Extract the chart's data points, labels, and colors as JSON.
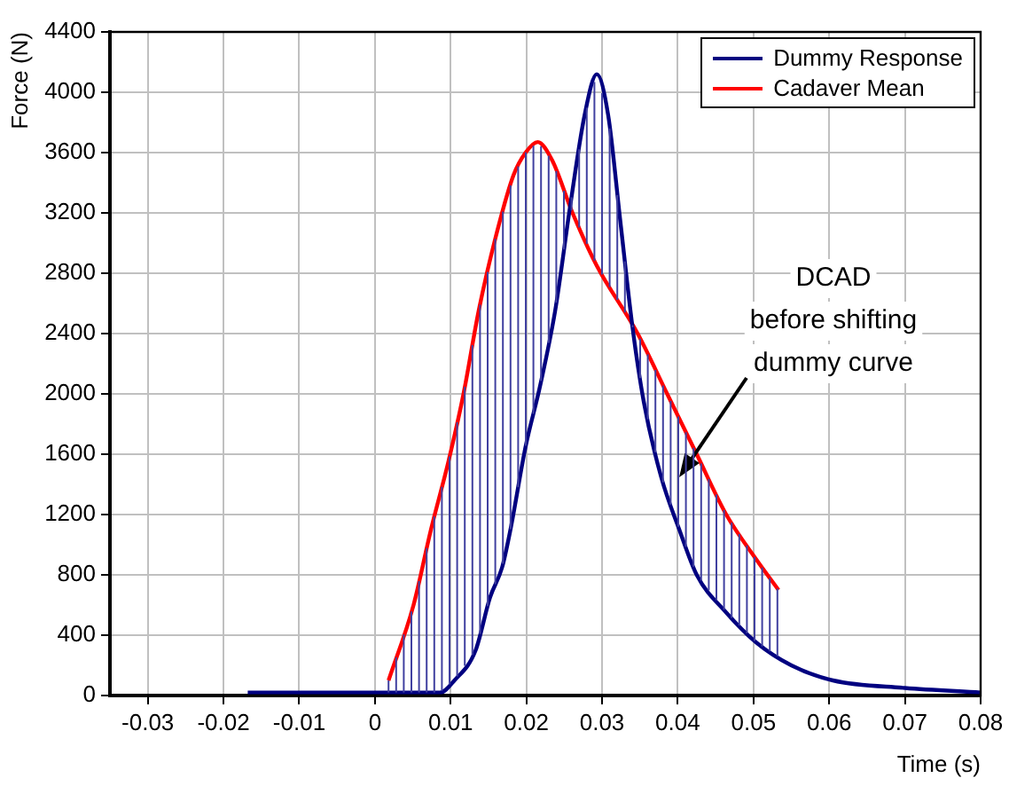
{
  "chart_data": {
    "type": "line",
    "xlabel": "Time (s)",
    "ylabel": "Force (N)",
    "xlim": [
      -0.035,
      0.08
    ],
    "xticks": [
      -0.03,
      -0.02,
      -0.01,
      0,
      0.01,
      0.02,
      0.03,
      0.04,
      0.05,
      0.06,
      0.07,
      0.08
    ],
    "ylim": [
      0,
      4400
    ],
    "yticks": [
      0,
      400,
      800,
      1200,
      1600,
      2000,
      2400,
      2800,
      3200,
      3600,
      4000,
      4400
    ],
    "grid": true,
    "legend": "top right",
    "marker": "none",
    "line_style": "solid",
    "annotations": [
      "DCAD\nbefore shifting\ndummy curve"
    ],
    "series": [
      {
        "name": "Dummy Response",
        "color": "#000080",
        "x": [
          -0.0168,
          0,
          0.0086,
          0.0105,
          0.0133,
          0.0152,
          0.0168,
          0.0179,
          0.0199,
          0.0218,
          0.0238,
          0.0258,
          0.0277,
          0.0293,
          0.0308,
          0.0324,
          0.034,
          0.0355,
          0.0378,
          0.0402,
          0.0425,
          0.0464,
          0.0504,
          0.055,
          0.0605,
          0.07,
          0.08
        ],
        "values": [
          20,
          20,
          20,
          100,
          300,
          650,
          850,
          1100,
          1650,
          2050,
          2550,
          3250,
          3850,
          4120,
          3850,
          3150,
          2450,
          1950,
          1450,
          1100,
          800,
          550,
          350,
          200,
          100,
          50,
          20
        ]
      },
      {
        "name": "Cadaver Mean",
        "color": "#ff0000",
        "x": [
          0.0018,
          0.0051,
          0.0074,
          0.0097,
          0.0117,
          0.0137,
          0.016,
          0.0183,
          0.0199,
          0.0215,
          0.0234,
          0.0261,
          0.0293,
          0.0347,
          0.0386,
          0.0425,
          0.0464,
          0.0504,
          0.0533
        ],
        "values": [
          100,
          600,
          1100,
          1550,
          2000,
          2550,
          3050,
          3450,
          3600,
          3670,
          3550,
          3200,
          2850,
          2400,
          2000,
          1600,
          1200,
          900,
          700
        ]
      }
    ]
  }
}
